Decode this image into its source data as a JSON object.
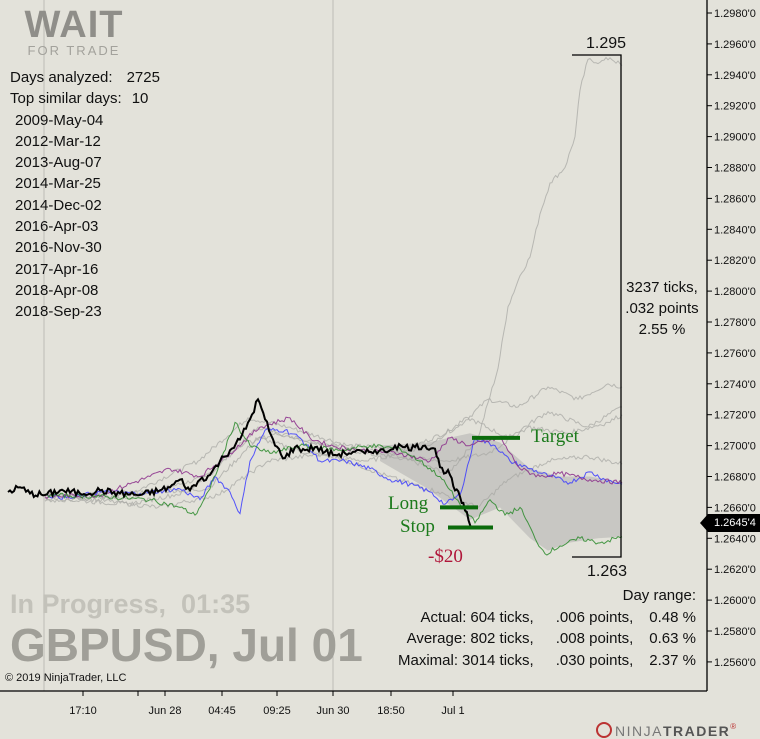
{
  "logo": {
    "main": "WAIT",
    "sub": "FOR TRADE"
  },
  "info": {
    "days_analyzed_label": "Days analyzed:",
    "days_analyzed": "2725",
    "top_similar_label": "Top similar days:",
    "top_similar": "10",
    "similar_days": [
      "2009-May-04",
      "2012-Mar-12",
      "2013-Aug-07",
      "2014-Mar-25",
      "2014-Dec-02",
      "2016-Apr-03",
      "2016-Nov-30",
      "2017-Apr-16",
      "2018-Apr-08",
      "2018-Sep-23"
    ]
  },
  "watermark": {
    "status": "In Progress,  01:35",
    "instrument": "GBPUSD, Jul 01"
  },
  "copyright": "© 2019 NinjaTrader, LLC",
  "brand": {
    "ninja": "NINJA",
    "trader": "TRADER",
    "reg": "®"
  },
  "range_box": {
    "high": "1.295",
    "low": "1.263",
    "ticks": "3237 ticks,",
    "points": ".032 points",
    "percent": "2.55 %"
  },
  "stats": {
    "title": "Day range:",
    "rows": [
      {
        "label": "Actual:",
        "ticks": "604 ticks,",
        "points": ".006 points,",
        "percent": "0.48 %"
      },
      {
        "label": "Average:",
        "ticks": "802 ticks,",
        "points": ".008 points,",
        "percent": "0.63 %"
      },
      {
        "label": "Maximal:",
        "ticks": "3014 ticks,",
        "points": ".030 points,",
        "percent": "2.37 %"
      }
    ]
  },
  "levels": {
    "target": "Target",
    "long": "Long",
    "stop": "Stop",
    "pnl": "-$20"
  },
  "current_price": "1.2645'4",
  "colors": {
    "today": "#000000",
    "blue": "#3a3aff",
    "purple": "#8a2a8a",
    "green": "#2a8a2a",
    "gray": "#a8a8a4",
    "band": "#c4c4c0",
    "level": "#0b6b0b",
    "pnl": "#b0163a"
  },
  "chart_data": {
    "type": "line",
    "x_unit": "bar",
    "xlim": [
      0,
      614
    ],
    "ylim": [
      1.2545,
      1.2988
    ],
    "y_ticks": [
      "1.2980'0",
      "1.2960'0",
      "1.2940'0",
      "1.2920'0",
      "1.2900'0",
      "1.2880'0",
      "1.2860'0",
      "1.2840'0",
      "1.2820'0",
      "1.2800'0",
      "1.2780'0",
      "1.2760'0",
      "1.2740'0",
      "1.2720'0",
      "1.2700'0",
      "1.2680'0",
      "1.2660'0",
      "1.2640'0",
      "1.2620'0",
      "1.2600'0",
      "1.2580'0",
      "1.2560'0"
    ],
    "y_tick_values": [
      1.298,
      1.296,
      1.294,
      1.292,
      1.29,
      1.288,
      1.286,
      1.284,
      1.282,
      1.28,
      1.278,
      1.276,
      1.274,
      1.272,
      1.27,
      1.268,
      1.266,
      1.264,
      1.262,
      1.26,
      1.258,
      1.256
    ],
    "x_ticks": [
      {
        "bar": 75,
        "label": "17:10"
      },
      {
        "bar": 130,
        "label": ""
      },
      {
        "bar": 157,
        "label": "Jun 28"
      },
      {
        "bar": 214,
        "label": "04:45"
      },
      {
        "bar": 269,
        "label": "09:25"
      },
      {
        "bar": 325,
        "label": "Jun 30"
      },
      {
        "bar": 383,
        "label": "18:50"
      },
      {
        "bar": 445,
        "label": "Jul 1"
      }
    ],
    "grid_bars": [
      36,
      325
    ],
    "band": {
      "upper": [
        [
          372,
          1.27
        ],
        [
          420,
          1.2702
        ],
        [
          462,
          1.2708
        ],
        [
          492,
          1.2702
        ],
        [
          522,
          1.2685
        ],
        [
          552,
          1.268
        ],
        [
          582,
          1.268
        ],
        [
          614,
          1.2676
        ]
      ],
      "lower": [
        [
          372,
          1.269
        ],
        [
          420,
          1.2672
        ],
        [
          462,
          1.2652
        ],
        [
          492,
          1.266
        ],
        [
          522,
          1.264
        ],
        [
          540,
          1.2632
        ],
        [
          560,
          1.2637
        ],
        [
          590,
          1.264
        ],
        [
          614,
          1.2641
        ]
      ]
    },
    "series": [
      {
        "name": "similar-1",
        "color": "gray",
        "points": [
          [
            37,
            1.2668
          ],
          [
            120,
            1.2666
          ],
          [
            200,
            1.268
          ],
          [
            250,
            1.2712
          ],
          [
            300,
            1.2703
          ],
          [
            380,
            1.2695
          ],
          [
            440,
            1.2682
          ],
          [
            470,
            1.2705
          ],
          [
            490,
            1.275
          ],
          [
            500,
            1.279
          ],
          [
            512,
            1.281
          ],
          [
            522,
            1.2822
          ],
          [
            532,
            1.285
          ],
          [
            542,
            1.287
          ],
          [
            557,
            1.288
          ],
          [
            567,
            1.29
          ],
          [
            572,
            1.293
          ],
          [
            580,
            1.295
          ],
          [
            592,
            1.2948
          ],
          [
            602,
            1.2951
          ],
          [
            614,
            1.2946
          ]
        ]
      },
      {
        "name": "similar-2",
        "color": "gray",
        "points": [
          [
            37,
            1.2664
          ],
          [
            120,
            1.2668
          ],
          [
            190,
            1.269
          ],
          [
            240,
            1.2718
          ],
          [
            280,
            1.2712
          ],
          [
            340,
            1.27
          ],
          [
            400,
            1.2698
          ],
          [
            450,
            1.2712
          ],
          [
            480,
            1.273
          ],
          [
            510,
            1.2725
          ],
          [
            540,
            1.2738
          ],
          [
            570,
            1.273
          ],
          [
            600,
            1.274
          ],
          [
            614,
            1.2738
          ]
        ]
      },
      {
        "name": "similar-3",
        "color": "gray",
        "points": [
          [
            37,
            1.2667
          ],
          [
            140,
            1.267
          ],
          [
            200,
            1.2672
          ],
          [
            250,
            1.2705
          ],
          [
            300,
            1.2695
          ],
          [
            360,
            1.269
          ],
          [
            420,
            1.27
          ],
          [
            460,
            1.2718
          ],
          [
            500,
            1.2705
          ],
          [
            540,
            1.2722
          ],
          [
            580,
            1.2712
          ],
          [
            614,
            1.2725
          ]
        ]
      },
      {
        "name": "similar-4",
        "color": "gray",
        "points": [
          [
            37,
            1.2669
          ],
          [
            150,
            1.266
          ],
          [
            210,
            1.2668
          ],
          [
            260,
            1.269
          ],
          [
            320,
            1.2695
          ],
          [
            380,
            1.268
          ],
          [
            430,
            1.267
          ],
          [
            470,
            1.266
          ],
          [
            500,
            1.2678
          ],
          [
            540,
            1.269
          ],
          [
            580,
            1.2693
          ],
          [
            614,
            1.2688
          ]
        ]
      },
      {
        "name": "similar-5",
        "color": "gray",
        "points": [
          [
            37,
            1.2666
          ],
          [
            120,
            1.2662
          ],
          [
            180,
            1.267
          ],
          [
            230,
            1.27
          ],
          [
            270,
            1.2708
          ],
          [
            330,
            1.2698
          ],
          [
            390,
            1.2692
          ],
          [
            440,
            1.269
          ],
          [
            480,
            1.2695
          ],
          [
            520,
            1.2712
          ],
          [
            560,
            1.2708
          ],
          [
            600,
            1.2715
          ],
          [
            614,
            1.272
          ]
        ]
      },
      {
        "name": "blue",
        "color": "blue",
        "points": [
          [
            37,
            1.2668
          ],
          [
            62,
            1.2666
          ],
          [
            92,
            1.267
          ],
          [
            132,
            1.2669
          ],
          [
            172,
            1.2672
          ],
          [
            192,
            1.2665
          ],
          [
            207,
            1.268
          ],
          [
            222,
            1.267
          ],
          [
            232,
            1.2656
          ],
          [
            242,
            1.269
          ],
          [
            257,
            1.271
          ],
          [
            277,
            1.271
          ],
          [
            292,
            1.2705
          ],
          [
            312,
            1.269
          ],
          [
            337,
            1.269
          ],
          [
            362,
            1.2685
          ],
          [
            382,
            1.2678
          ],
          [
            402,
            1.2675
          ],
          [
            422,
            1.267
          ],
          [
            437,
            1.2662
          ],
          [
            452,
            1.2668
          ],
          [
            467,
            1.2705
          ],
          [
            487,
            1.27
          ],
          [
            502,
            1.269
          ],
          [
            522,
            1.2685
          ],
          [
            542,
            1.268
          ],
          [
            562,
            1.2676
          ],
          [
            582,
            1.2683
          ],
          [
            597,
            1.2678
          ],
          [
            614,
            1.2675
          ]
        ]
      },
      {
        "name": "purple",
        "color": "purple",
        "points": [
          [
            37,
            1.2667
          ],
          [
            92,
            1.2668
          ],
          [
            142,
            1.268
          ],
          [
            162,
            1.2685
          ],
          [
            192,
            1.268
          ],
          [
            222,
            1.2695
          ],
          [
            252,
            1.2712
          ],
          [
            282,
            1.2718
          ],
          [
            302,
            1.2705
          ],
          [
            322,
            1.27
          ],
          [
            352,
            1.2697
          ],
          [
            392,
            1.2695
          ],
          [
            422,
            1.269
          ],
          [
            442,
            1.2705
          ],
          [
            462,
            1.27
          ],
          [
            492,
            1.2705
          ],
          [
            512,
            1.2685
          ],
          [
            532,
            1.268
          ],
          [
            552,
            1.2682
          ],
          [
            582,
            1.2678
          ],
          [
            614,
            1.2676
          ]
        ]
      },
      {
        "name": "green",
        "color": "green",
        "points": [
          [
            37,
            1.2668
          ],
          [
            92,
            1.2667
          ],
          [
            142,
            1.2665
          ],
          [
            172,
            1.266
          ],
          [
            187,
            1.2655
          ],
          [
            202,
            1.2672
          ],
          [
            227,
            1.2715
          ],
          [
            242,
            1.27
          ],
          [
            262,
            1.2695
          ],
          [
            292,
            1.27
          ],
          [
            332,
            1.2697
          ],
          [
            362,
            1.27
          ],
          [
            392,
            1.2698
          ],
          [
            412,
            1.269
          ],
          [
            432,
            1.268
          ],
          [
            452,
            1.2662
          ],
          [
            467,
            1.265
          ],
          [
            482,
            1.2665
          ],
          [
            497,
            1.2655
          ],
          [
            512,
            1.266
          ],
          [
            527,
            1.264
          ],
          [
            537,
            1.263
          ],
          [
            552,
            1.2635
          ],
          [
            572,
            1.264
          ],
          [
            592,
            1.2637
          ],
          [
            614,
            1.2641
          ]
        ]
      },
      {
        "name": "today",
        "color": "today",
        "points": [
          [
            0,
            1.267
          ],
          [
            12,
            1.2673
          ],
          [
            22,
            1.2669
          ],
          [
            37,
            1.2668
          ],
          [
            52,
            1.2671
          ],
          [
            72,
            1.2669
          ],
          [
            92,
            1.2671
          ],
          [
            112,
            1.2669
          ],
          [
            132,
            1.2668
          ],
          [
            152,
            1.2671
          ],
          [
            162,
            1.2673
          ],
          [
            172,
            1.2678
          ],
          [
            182,
            1.2671
          ],
          [
            192,
            1.2678
          ],
          [
            202,
            1.2681
          ],
          [
            212,
            1.269
          ],
          [
            222,
            1.2697
          ],
          [
            232,
            1.2704
          ],
          [
            242,
            1.2717
          ],
          [
            250,
            1.273
          ],
          [
            257,
            1.2717
          ],
          [
            267,
            1.27
          ],
          [
            277,
            1.2692
          ],
          [
            287,
            1.2699
          ],
          [
            297,
            1.2697
          ],
          [
            307,
            1.2699
          ],
          [
            317,
            1.2696
          ],
          [
            327,
            1.2694
          ],
          [
            337,
            1.2695
          ],
          [
            347,
            1.2696
          ],
          [
            357,
            1.2695
          ],
          [
            367,
            1.2697
          ],
          [
            377,
            1.2696
          ],
          [
            387,
            1.27
          ],
          [
            397,
            1.2699
          ],
          [
            407,
            1.2699
          ],
          [
            417,
            1.27
          ],
          [
            427,
            1.2698
          ],
          [
            432,
            1.2686
          ],
          [
            442,
            1.2681
          ],
          [
            447,
            1.2671
          ],
          [
            452,
            1.2667
          ],
          [
            457,
            1.2658
          ],
          [
            464,
            1.2646
          ]
        ]
      }
    ],
    "levels": [
      {
        "name": "target",
        "price": 1.2705,
        "from": 464,
        "to": 512
      },
      {
        "name": "long",
        "price": 1.266,
        "from": 432,
        "to": 470
      },
      {
        "name": "stop",
        "price": 1.2647,
        "from": 440,
        "to": 485
      }
    ]
  }
}
